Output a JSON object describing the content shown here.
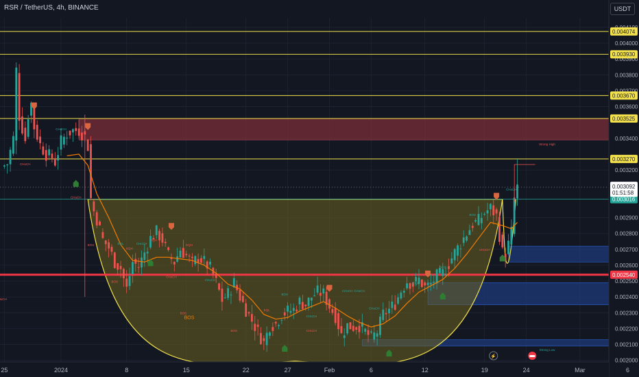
{
  "header": {
    "symbol_title": "RSR / TetherUS, 4h, BINANCE",
    "currency_button": "USDT"
  },
  "colors": {
    "background": "#131722",
    "grid": "#1e2230",
    "candle_up": "#26a69a",
    "candle_down": "#ef5350",
    "candle_wick": "#d1d4dc",
    "hline": "#f2e14c",
    "strong_line": "#f23645",
    "supply_zone": "#7a2e37",
    "demand_zone": "#1e3a78",
    "cup_fill": "#6b6321",
    "cup_line": "#f2e14c",
    "ma_line": "#f57c00"
  },
  "chart_data": {
    "type": "candlestick",
    "price_axis": {
      "ticks": [
        "0.004100",
        "0.004000",
        "0.003900",
        "0.003800",
        "0.003700",
        "0.003600",
        "0.003400",
        "0.003200",
        "0.002900",
        "0.002800",
        "0.002700",
        "0.002600",
        "0.002500",
        "0.002400",
        "0.002300",
        "0.002200",
        "0.002100",
        "0.002000"
      ],
      "tick_values": [
        0.0041,
        0.004,
        0.0039,
        0.0038,
        0.0037,
        0.0036,
        0.0034,
        0.0032,
        0.0029,
        0.0028,
        0.0027,
        0.0026,
        0.0025,
        0.0024,
        0.0023,
        0.0022,
        0.0021,
        0.002
      ],
      "range": [
        0.00199,
        0.00416
      ]
    },
    "time_axis": {
      "labels": [
        "25",
        "2024",
        "8",
        "15",
        "22",
        "27",
        "Feb",
        "6",
        "12",
        "19",
        "24",
        "Mar",
        "6"
      ],
      "label_index": [
        1,
        20,
        42,
        62,
        82,
        96,
        110,
        124,
        142,
        162,
        176,
        194,
        210
      ]
    },
    "horizontal_lines": [
      {
        "label": "0.004074",
        "value": 0.004074,
        "style": "yellow"
      },
      {
        "label": "0.003930",
        "value": 0.00393,
        "style": "yellow"
      },
      {
        "label": "0.003670",
        "value": 0.00367,
        "style": "yellow"
      },
      {
        "label": "0.003525",
        "value": 0.003525,
        "style": "yellow"
      },
      {
        "label": "0.003270",
        "value": 0.00327,
        "style": "yellow"
      },
      {
        "label": "0.003016",
        "value": 0.003016,
        "style": "green"
      },
      {
        "label": "0.002540",
        "value": 0.00254,
        "style": "red"
      }
    ],
    "last_price": {
      "value": "0.003092",
      "countdown": "01:51:58",
      "level": 0.003092
    },
    "zones": [
      {
        "kind": "supply",
        "from_index": 26,
        "to_index": 212,
        "top": 0.003525,
        "bottom": 0.00339
      },
      {
        "kind": "demand",
        "from_index": 170,
        "to_index": 212,
        "top": 0.00272,
        "bottom": 0.00262
      },
      {
        "kind": "demand",
        "from_index": 143,
        "to_index": 212,
        "top": 0.00249,
        "bottom": 0.00235
      },
      {
        "kind": "demand",
        "from_index": 121,
        "to_index": 212,
        "top": 0.00213,
        "bottom": 0.00209
      }
    ],
    "cup": {
      "left_index": 29,
      "right_index": 168,
      "rim": 0.003016,
      "bottom": 0.001995
    },
    "annotations": [
      {
        "text": "CHoCH",
        "index": 20,
        "price": 0.00345,
        "color": "green"
      },
      {
        "text": "CHoCH",
        "index": 8,
        "price": 0.00323,
        "color": "red"
      },
      {
        "text": "CHoCH",
        "index": 25,
        "price": 0.00302,
        "color": "red"
      },
      {
        "text": "BOS",
        "index": 30,
        "price": 0.00272,
        "color": "red"
      },
      {
        "text": "BOS",
        "index": 38,
        "price": 0.00249,
        "color": "red"
      },
      {
        "text": "EQL",
        "index": 40,
        "price": 0.00273,
        "color": "green"
      },
      {
        "text": "EQH",
        "index": 43,
        "price": 0.0027,
        "color": "red"
      },
      {
        "text": "CHoCH",
        "index": 47,
        "price": 0.00273,
        "color": "green"
      },
      {
        "text": "EQH",
        "index": 51,
        "price": 0.00275,
        "color": "red"
      },
      {
        "text": "CHoCH",
        "index": 57,
        "price": 0.00252,
        "color": "red"
      },
      {
        "text": "EQH",
        "index": 63,
        "price": 0.00272,
        "color": "red"
      },
      {
        "text": "CHoCH",
        "index": 70,
        "price": 0.0025,
        "color": "green"
      },
      {
        "text": "BOS",
        "index": 61,
        "price": 0.00229,
        "color": "red"
      },
      {
        "text": "BOS",
        "index": 78,
        "price": 0.00218,
        "color": "red"
      },
      {
        "text": "EQL",
        "index": 89,
        "price": 0.00231,
        "color": "red"
      },
      {
        "text": "BOS",
        "index": 95,
        "price": 0.00241,
        "color": "green"
      },
      {
        "text": "CHoCH",
        "index": 104,
        "price": 0.00227,
        "color": "green"
      },
      {
        "text": "CHoCH",
        "index": 116,
        "price": 0.00243,
        "color": "green"
      },
      {
        "text": "CHoCH",
        "index": 125,
        "price": 0.00232,
        "color": "green"
      },
      {
        "text": "CHoCH",
        "index": 104,
        "price": 0.00218,
        "color": "red"
      },
      {
        "text": "EQL",
        "index": 139,
        "price": 0.00248,
        "color": "green"
      },
      {
        "text": "BOS",
        "index": 148,
        "price": 0.00258,
        "color": "green"
      },
      {
        "text": "BOS",
        "index": 158,
        "price": 0.00291,
        "color": "green"
      },
      {
        "text": "CHoCH",
        "index": 162,
        "price": 0.00269,
        "color": "red"
      },
      {
        "text": "CHoCH",
        "index": 171,
        "price": 0.00307,
        "color": "green"
      },
      {
        "text": "Strong High",
        "index": 183,
        "price": 0.003355,
        "color": "red"
      },
      {
        "text": "Strong Low",
        "index": 183,
        "price": 0.00206,
        "color": "green"
      },
      {
        "text": "BOS",
        "index": 63,
        "price": 0.00226,
        "color": "orange"
      },
      {
        "text": "CHoCH",
        "index": 120,
        "price": 0.00243,
        "color": "green"
      },
      {
        "text": "CHoCH",
        "index": 0,
        "price": 0.00238,
        "color": "red"
      }
    ],
    "markers": [
      {
        "index": 50,
        "kind": "bull",
        "price": 0.00262
      },
      {
        "index": 25,
        "kind": "bull",
        "price": 0.00312
      },
      {
        "index": 57,
        "kind": "bear",
        "price": 0.00284
      },
      {
        "index": 95,
        "kind": "bull",
        "price": 0.00208
      },
      {
        "index": 130,
        "kind": "bull",
        "price": 0.00205
      },
      {
        "index": 148,
        "kind": "bull",
        "price": 0.00241
      },
      {
        "index": 168,
        "kind": "bull",
        "price": 0.00265
      },
      {
        "index": 29,
        "kind": "bear",
        "price": 0.00347
      },
      {
        "index": 110,
        "kind": "bear",
        "price": 0.00245
      },
      {
        "index": 143,
        "kind": "bear",
        "price": 0.00254
      },
      {
        "index": 166,
        "kind": "bear",
        "price": 0.00303
      },
      {
        "index": 11,
        "kind": "bear",
        "price": 0.0036
      }
    ],
    "close_path": [
      [
        0,
        0.00322
      ],
      [
        2,
        0.00324
      ],
      [
        4,
        0.0034
      ],
      [
        5,
        0.00383
      ],
      [
        6,
        0.00354
      ],
      [
        8,
        0.00339
      ],
      [
        9,
        0.00355
      ],
      [
        10,
        0.00362
      ],
      [
        11,
        0.00347
      ],
      [
        13,
        0.00336
      ],
      [
        15,
        0.0033
      ],
      [
        17,
        0.00328
      ],
      [
        18,
        0.00325
      ],
      [
        20,
        0.00338
      ],
      [
        22,
        0.00343
      ],
      [
        24,
        0.00345
      ],
      [
        26,
        0.00345
      ],
      [
        28,
        0.00341
      ],
      [
        29,
        0.00335
      ],
      [
        30,
        0.00302
      ],
      [
        31,
        0.00294
      ],
      [
        32,
        0.00289
      ],
      [
        34,
        0.00276
      ],
      [
        36,
        0.00271
      ],
      [
        38,
        0.00262
      ],
      [
        40,
        0.00258
      ],
      [
        42,
        0.00245
      ],
      [
        44,
        0.00262
      ],
      [
        46,
        0.00259
      ],
      [
        48,
        0.00268
      ],
      [
        50,
        0.00277
      ],
      [
        52,
        0.00281
      ],
      [
        54,
        0.00276
      ],
      [
        56,
        0.00266
      ],
      [
        58,
        0.00262
      ],
      [
        60,
        0.0027
      ],
      [
        62,
        0.00266
      ],
      [
        64,
        0.00261
      ],
      [
        66,
        0.00265
      ],
      [
        68,
        0.00262
      ],
      [
        70,
        0.00258
      ],
      [
        72,
        0.00249
      ],
      [
        74,
        0.00238
      ],
      [
        76,
        0.00242
      ],
      [
        78,
        0.00249
      ],
      [
        80,
        0.0024
      ],
      [
        82,
        0.00232
      ],
      [
        84,
        0.00225
      ],
      [
        86,
        0.00218
      ],
      [
        88,
        0.00211
      ],
      [
        90,
        0.00222
      ],
      [
        92,
        0.00223
      ],
      [
        94,
        0.00229
      ],
      [
        96,
        0.00231
      ],
      [
        98,
        0.00232
      ],
      [
        100,
        0.00237
      ],
      [
        102,
        0.00235
      ],
      [
        104,
        0.0024
      ],
      [
        106,
        0.00243
      ],
      [
        108,
        0.00242
      ],
      [
        110,
        0.00234
      ],
      [
        112,
        0.00228
      ],
      [
        114,
        0.00216
      ],
      [
        116,
        0.00222
      ],
      [
        118,
        0.00221
      ],
      [
        120,
        0.00222
      ],
      [
        122,
        0.00218
      ],
      [
        124,
        0.00214
      ],
      [
        126,
        0.00218
      ],
      [
        128,
        0.00229
      ],
      [
        130,
        0.00232
      ],
      [
        132,
        0.00236
      ],
      [
        134,
        0.00244
      ],
      [
        136,
        0.0025
      ],
      [
        138,
        0.00248
      ],
      [
        140,
        0.00251
      ],
      [
        142,
        0.00246
      ],
      [
        144,
        0.00248
      ],
      [
        146,
        0.00253
      ],
      [
        148,
        0.00255
      ],
      [
        150,
        0.00261
      ],
      [
        152,
        0.00268
      ],
      [
        154,
        0.00274
      ],
      [
        156,
        0.0028
      ],
      [
        158,
        0.00286
      ],
      [
        160,
        0.00288
      ],
      [
        162,
        0.00293
      ],
      [
        164,
        0.00296
      ],
      [
        166,
        0.00291
      ],
      [
        167,
        0.00279
      ],
      [
        168,
        0.00268
      ],
      [
        169,
        0.00266
      ],
      [
        170,
        0.00273
      ],
      [
        171,
        0.00281
      ],
      [
        172,
        0.00302
      ],
      [
        173,
        0.00309
      ]
    ],
    "ma_path": [
      [
        22,
        0.00329
      ],
      [
        26,
        0.0033
      ],
      [
        29,
        0.00323
      ],
      [
        32,
        0.00305
      ],
      [
        36,
        0.0029
      ],
      [
        40,
        0.00273
      ],
      [
        44,
        0.00263
      ],
      [
        48,
        0.00262
      ],
      [
        52,
        0.00265
      ],
      [
        56,
        0.00265
      ],
      [
        60,
        0.00264
      ],
      [
        64,
        0.00263
      ],
      [
        68,
        0.0026
      ],
      [
        72,
        0.00255
      ],
      [
        76,
        0.00248
      ],
      [
        80,
        0.00245
      ],
      [
        84,
        0.00238
      ],
      [
        88,
        0.00229
      ],
      [
        92,
        0.00226
      ],
      [
        96,
        0.00227
      ],
      [
        100,
        0.00231
      ],
      [
        104,
        0.00234
      ],
      [
        108,
        0.00237
      ],
      [
        112,
        0.00233
      ],
      [
        116,
        0.00228
      ],
      [
        120,
        0.00224
      ],
      [
        124,
        0.00221
      ],
      [
        128,
        0.00223
      ],
      [
        132,
        0.00228
      ],
      [
        136,
        0.00236
      ],
      [
        140,
        0.00243
      ],
      [
        144,
        0.00247
      ],
      [
        148,
        0.00251
      ],
      [
        152,
        0.00258
      ],
      [
        156,
        0.00267
      ],
      [
        160,
        0.00277
      ],
      [
        164,
        0.00287
      ],
      [
        168,
        0.00285
      ],
      [
        171,
        0.00283
      ],
      [
        173,
        0.00287
      ]
    ]
  }
}
